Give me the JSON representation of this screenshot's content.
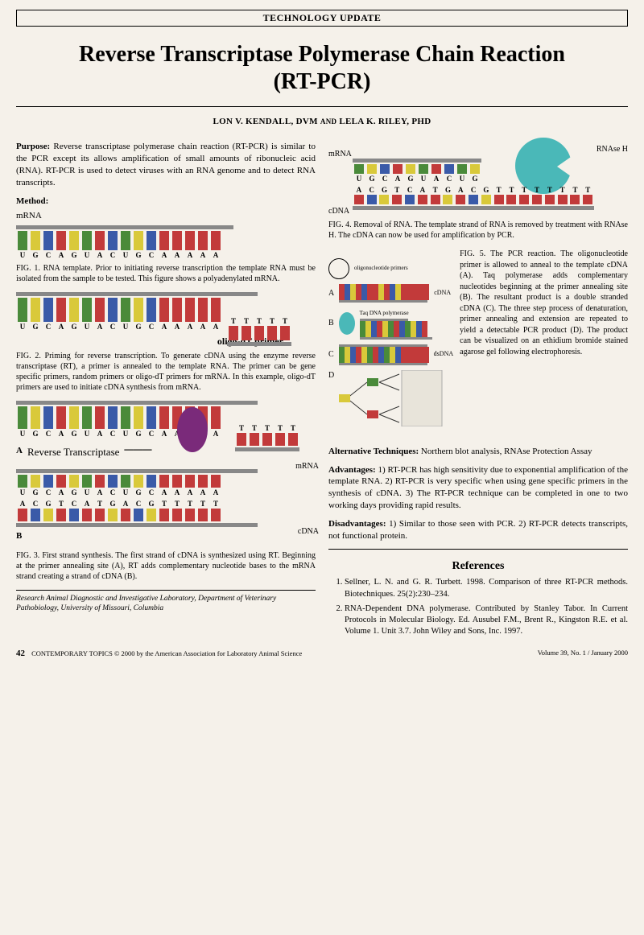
{
  "header": "TECHNOLOGY UPDATE",
  "title_line1": "Reverse Transcriptase Polymerase Chain Reaction",
  "title_line2": "(RT-PCR)",
  "authors": "LON V. KENDALL, DVM",
  "authors_and": "AND",
  "authors2": "LELA K. RILEY, PHD",
  "purpose_lead": "Purpose:",
  "purpose": " Reverse transcriptase polymerase chain reaction (RT-PCR) is similar to the PCR except its allows amplification of small amounts of ribonucleic acid (RNA). RT-PCR is used to detect viruses with an RNA genome and to detect RNA transcripts.",
  "method_h": "Method:",
  "mrna_label": "mRNA",
  "cdna_label": "cDNA",
  "dsdna_label": "dsDNA",
  "rnase_label": "RNAse H",
  "oligo_label": "oligo-dT primer",
  "rt_label": "Reverse Transcriptase",
  "taq_label": "Taq DNA polymerase",
  "primer_label": "oligonucleotide primers",
  "panelA": "A",
  "panelB": "B",
  "panelC": "C",
  "panelD": "D",
  "fig1": "FIG. 1. RNA template. Prior to initiating reverse transcription the template RNA must be isolated from the sample to be tested. This figure shows a polyadenylated mRNA.",
  "fig2": "FIG. 2. Priming for reverse transcription. To generate cDNA using the enzyme reverse transcriptase (RT), a primer is annealed to the template RNA. The primer can be gene specific primers, random primers or oligo-dT primers for mRNA. In this example, oligo-dT primers are used to initiate cDNA synthesis from mRNA.",
  "fig3": "FIG. 3. First strand synthesis. The first strand of cDNA is synthesized using RT. Beginning at the primer annealing site (A), RT adds complementary nucleotide bases to the mRNA strand creating a strand of cDNA (B).",
  "fig4": "FIG. 4. Removal of RNA. The template strand of RNA is removed by treatment with RNAse H. The cDNA can now be used for amplification by PCR.",
  "fig5": "FIG. 5. The PCR reaction. The oligonucleotide primer is allowed to anneal to the template cDNA (A). Taq polymerase adds complementary nucleotides beginning at the primer annealing site (B). The resultant product is a double stranded cDNA (C). The three step process of denaturation, primer annealing and extension are repeated to yield a detectable PCR product (D). The product can be visualized on an ethidium bromide stained agarose gel following electrophoresis.",
  "alt_lead": "Alternative Techniques:",
  "alt": " Northern blot analysis, RNAse Protection Assay",
  "adv_lead": "Advantages:",
  "adv": " 1) RT-PCR has high sensitivity due to exponential amplification of the template RNA. 2) RT-PCR is very specific when using gene specific primers in the synthesis of cDNA. 3) The RT-PCR technique can be completed in one to two working days providing rapid results.",
  "dis_lead": "Disadvantages:",
  "dis": " 1) Similar to those seen with PCR. 2) RT-PCR detects transcripts, not functional protein.",
  "refs_h": "References",
  "ref1": "Sellner, L. N. and G. R. Turbett. 1998. Comparison of three RT-PCR methods. Biotechniques. 25(2):230–234.",
  "ref2": "RNA-Dependent DNA polymerase. Contributed by Stanley Tabor. In Current Protocols in Molecular Biology. Ed. Ausubel F.M., Brent R., Kingston R.E. et al. Volume 1. Unit 3.7. John Wiley and Sons, Inc. 1997.",
  "affil": "Research Animal Diagnostic and Investigative Laboratory, Department of Veterinary Pathobiology, University of Missouri, Columbia",
  "footer_left_pg": "42",
  "footer_left": "CONTEMPORARY TOPICS © 2000 by the American Association for Laboratory Animal Science",
  "footer_right": "Volume 39, No. 1 / January 2000",
  "seq1": [
    "U",
    "G",
    "C",
    "A",
    "G",
    "U",
    "A",
    "C",
    "U",
    "G",
    "C",
    "A",
    "A",
    "A",
    "A",
    "A"
  ],
  "seq_top": [
    "U",
    "G",
    "C",
    "A",
    "G",
    "U",
    "A",
    "C",
    "U",
    "G",
    "C",
    "A",
    "A",
    "A",
    "A",
    "A"
  ],
  "seq_bot": [
    "A",
    "C",
    "G",
    "T",
    "C",
    "A",
    "T",
    "G",
    "A",
    "C",
    "G",
    "T",
    "T",
    "T",
    "T",
    "T"
  ],
  "seq_primer": [
    "T",
    "T",
    "T",
    "T",
    "T"
  ],
  "colors": {
    "U": "#4a8a3a",
    "G": "#d9c93a",
    "C": "#3a5aa8",
    "A": "#c23a3a",
    "T": "#c23a3a",
    "bar": "#888888",
    "rt": "#7a2a7a",
    "rnase": "#4ab8b8",
    "bg": "#f5f1ea"
  }
}
